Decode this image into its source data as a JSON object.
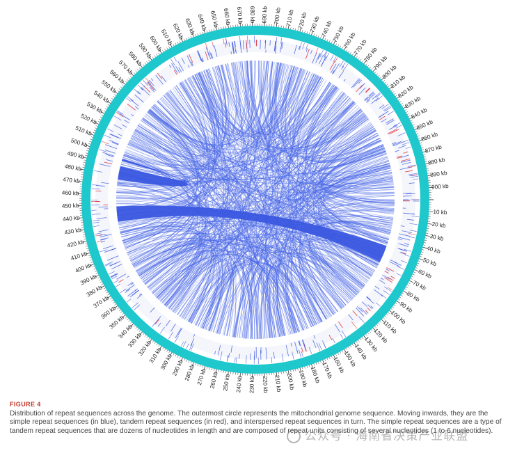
{
  "figure": {
    "type": "circos-plot",
    "ring_labels": [
      "10 kb",
      "20 kb",
      "30 kb",
      "40 kb",
      "50 kb",
      "60 kb",
      "70 kb",
      "80 kb",
      "90 kb",
      "100 kb",
      "110 kb",
      "120 kb",
      "130 kb",
      "140 kb",
      "150 kb",
      "160 kb",
      "170 kb",
      "180 kb",
      "190 kb",
      "200 kb",
      "210 kb",
      "220 kb",
      "230 kb",
      "240 kb",
      "250 kb",
      "260 kb",
      "270 kb",
      "280 kb",
      "290 kb",
      "300 kb",
      "310 kb",
      "320 kb",
      "330 kb",
      "340 kb",
      "350 kb",
      "360 kb",
      "370 kb",
      "380 kb",
      "390 kb",
      "400 kb",
      "410 kb",
      "420 kb",
      "430 kb",
      "440 kb",
      "450 kb",
      "460 kb",
      "470 kb",
      "480 kb",
      "490 kb",
      "500 kb",
      "510 kb",
      "520 kb",
      "530 kb",
      "540 kb",
      "550 kb",
      "560 kb",
      "570 kb",
      "580 kb",
      "590 kb",
      "600 kb",
      "610 kb",
      "620 kb",
      "630 kb",
      "640 kb",
      "650 kb",
      "660 kb",
      "670 kb",
      "680 kb",
      "690 kb",
      "700 kb",
      "710 kb",
      "720 kb",
      "730 kb",
      "740 kb",
      "750 kb",
      "760 kb",
      "770 kb",
      "780 kb",
      "790 kb",
      "800 kb",
      "810 kb",
      "820 kb",
      "830 kb",
      "840 kb",
      "850 kb",
      "860 kb",
      "870 kb",
      "880 kb",
      "890 kb",
      "900 kb"
    ],
    "genome_length_kb": 910,
    "colors": {
      "genome_ring": "#1fc8cc",
      "simple_repeats": "#3a57e0",
      "tandem_repeats": "#e0303a",
      "interspersed_links": "#4a68e6"
    },
    "large_links": [
      {
        "from_kb": 483,
        "to_kb": 497
      },
      {
        "from_kb": 440,
        "to_kb": 58
      }
    ]
  },
  "caption": {
    "figure_number": "FIGURE 4",
    "text": "Distribution of repeat sequences across the genome. The outermost circle represents the mitochondrial genome sequence. Moving inwards, they are the simple repeat sequences (in blue), tandem repeat sequences (in red), and interspersed repeat sequences in turn. The simple repeat sequences are a type of tandem repeat sequences that are dozens of nucleotides in length and are composed of repeat units consisting of several nucleotides (1 to 6 nucleotides)."
  },
  "watermark": {
    "text": "公众号 · 海南省决策产业联盟"
  }
}
